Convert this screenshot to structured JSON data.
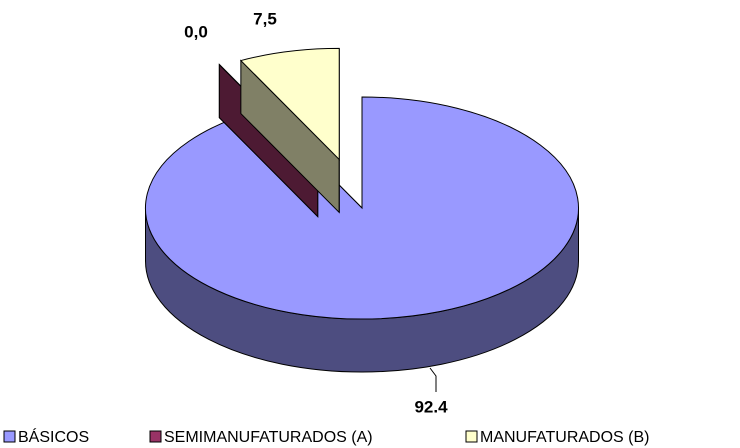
{
  "chart_data": {
    "type": "pie",
    "categories": [
      "BÁSICOS",
      "SEMIMANUFATURADOS (A)",
      "MANUFATURADOS (B)"
    ],
    "values": [
      92.4,
      0,
      7.5
    ],
    "value_labels": [
      "92.4",
      "0,0",
      "7,5"
    ],
    "colors": [
      "#9999ff",
      "#993366",
      "#ffffcc"
    ],
    "explode": [
      false,
      true,
      true
    ],
    "legend": "bottom"
  }
}
